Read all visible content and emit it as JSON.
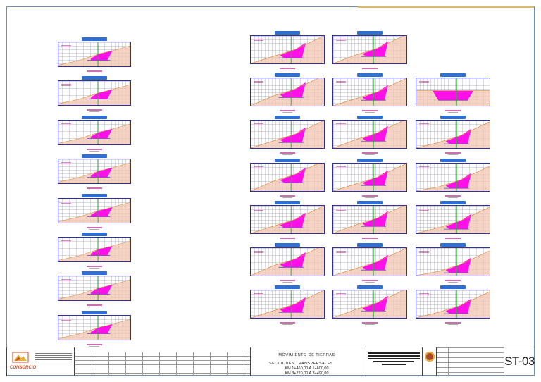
{
  "title_block": {
    "logo_text": "CONSORCIO",
    "content_heading": "MOVIMIENTO DE TIERRAS",
    "content_subtitle": "SECCIONES TRANSVERSALES",
    "range_1": "KM 1+460,00 A 1+600,00",
    "range_2": "KM 3+220,00 A 3+490,00",
    "sheet_number": "ST-03"
  },
  "colors": {
    "frame": "#2d2fa6",
    "cut_fill": "#ff10e8",
    "terrain_fill": "#f2c9b6",
    "centerline": "#1fb52a",
    "terrain_line": "#e08a3a",
    "title_bar": "#2f6fd4"
  },
  "sections": {
    "column_1": [
      "s1",
      "s2",
      "s3",
      "s4",
      "s5",
      "s6",
      "s7",
      "s8"
    ],
    "column_2": [
      "s1",
      "s2",
      "s3",
      "s4",
      "s5",
      "s6",
      "s7"
    ],
    "column_3": [
      "s1",
      "s2",
      "s3",
      "s4",
      "s5",
      "s6",
      "s7"
    ],
    "column_4": [
      "s2",
      "s3",
      "s4",
      "s5",
      "s6",
      "s7"
    ]
  }
}
